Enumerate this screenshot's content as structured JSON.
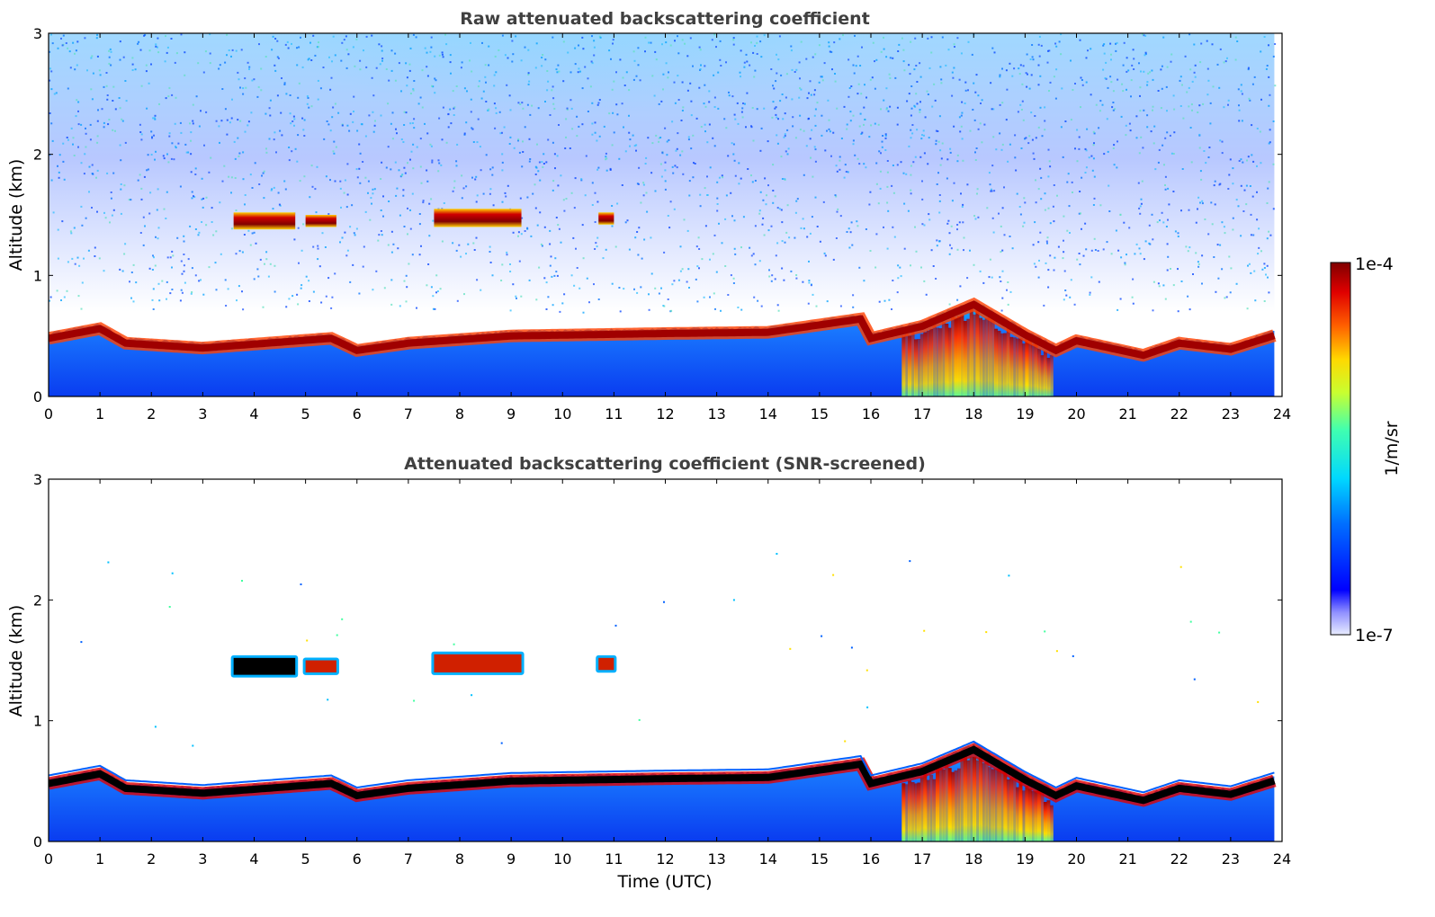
{
  "chart_data": [
    {
      "type": "heatmap",
      "title": "Raw attenuated backscattering coefficient",
      "xlabel": "",
      "ylabel": "Altitude (km)",
      "x_ticks": [
        "0",
        "1",
        "2",
        "3",
        "4",
        "5",
        "6",
        "7",
        "8",
        "9",
        "10",
        "11",
        "12",
        "13",
        "14",
        "15",
        "16",
        "17",
        "18",
        "19",
        "20",
        "21",
        "22",
        "23",
        "24"
      ],
      "y_ticks": [
        "0",
        "1",
        "2",
        "3"
      ],
      "xlim": [
        0,
        24
      ],
      "ylim": [
        0,
        3
      ],
      "features": {
        "boundary_layer_top_km": [
          {
            "x": 0,
            "y": 0.52
          },
          {
            "x": 1,
            "y": 0.6
          },
          {
            "x": 1.5,
            "y": 0.48
          },
          {
            "x": 3,
            "y": 0.44
          },
          {
            "x": 5.5,
            "y": 0.52
          },
          {
            "x": 6,
            "y": 0.42
          },
          {
            "x": 7,
            "y": 0.48
          },
          {
            "x": 9,
            "y": 0.54
          },
          {
            "x": 12,
            "y": 0.56
          },
          {
            "x": 14,
            "y": 0.57
          },
          {
            "x": 15.8,
            "y": 0.68
          },
          {
            "x": 16,
            "y": 0.52
          },
          {
            "x": 17,
            "y": 0.62
          },
          {
            "x": 18,
            "y": 0.8
          },
          {
            "x": 19,
            "y": 0.55
          },
          {
            "x": 19.6,
            "y": 0.42
          },
          {
            "x": 20,
            "y": 0.5
          },
          {
            "x": 21.3,
            "y": 0.38
          },
          {
            "x": 22,
            "y": 0.48
          },
          {
            "x": 23,
            "y": 0.43
          },
          {
            "x": 23.9,
            "y": 0.55
          }
        ],
        "cloud_layers_km": [
          {
            "x_start": 3.6,
            "x_end": 4.8,
            "y_bottom": 1.38,
            "y_top": 1.52
          },
          {
            "x_start": 5.0,
            "x_end": 5.6,
            "y_bottom": 1.4,
            "y_top": 1.5
          },
          {
            "x_start": 7.5,
            "x_end": 9.2,
            "y_bottom": 1.4,
            "y_top": 1.55
          },
          {
            "x_start": 10.7,
            "x_end": 11.0,
            "y_bottom": 1.42,
            "y_top": 1.52
          }
        ]
      }
    },
    {
      "type": "heatmap",
      "title": "Attenuated backscattering coefficient (SNR-screened)",
      "xlabel": "Time (UTC)",
      "ylabel": "Altitude (km)",
      "x_ticks": [
        "0",
        "1",
        "2",
        "3",
        "4",
        "5",
        "6",
        "7",
        "8",
        "9",
        "10",
        "11",
        "12",
        "13",
        "14",
        "15",
        "16",
        "17",
        "18",
        "19",
        "20",
        "21",
        "22",
        "23",
        "24"
      ],
      "y_ticks": [
        "0",
        "1",
        "2",
        "3"
      ],
      "xlim": [
        0,
        24
      ],
      "ylim": [
        0,
        3
      ]
    }
  ],
  "colorbar": {
    "max_label": "1e-4",
    "min_label": "1e-7",
    "unit_label": "1/m/sr"
  },
  "colors": {
    "title": "#404040",
    "frame": "#000000"
  }
}
